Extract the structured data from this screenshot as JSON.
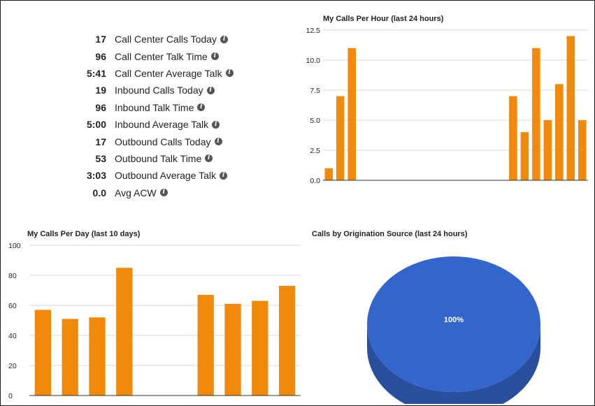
{
  "stats": [
    {
      "value": "17",
      "label": "Call Center Calls Today"
    },
    {
      "value": "96",
      "label": "Call Center Talk Time"
    },
    {
      "value": "5:41",
      "label": "Call Center Average Talk"
    },
    {
      "value": "19",
      "label": "Inbound Calls Today"
    },
    {
      "value": "96",
      "label": "Inbound Talk Time"
    },
    {
      "value": "5:00",
      "label": "Inbound Average Talk"
    },
    {
      "value": "17",
      "label": "Outbound Calls Today"
    },
    {
      "value": "53",
      "label": "Outbound Talk Time"
    },
    {
      "value": "3:03",
      "label": "Outbound Average Talk"
    },
    {
      "value": "0.0",
      "label": "Avg ACW"
    }
  ],
  "info_icon": "info-circle-icon",
  "colors": {
    "bar": "#f0890c",
    "pie_top": "#3366cc",
    "pie_side": "#2a4f9e"
  },
  "chart_data": [
    {
      "type": "bar",
      "title": "My Calls Per Hour (last 24 hours)",
      "ylim": [
        0,
        12.5
      ],
      "yticks": [
        "0.0",
        "2.5",
        "5.0",
        "7.5",
        "10.0",
        "12.5"
      ],
      "ytick_values": [
        0,
        2.5,
        5,
        7.5,
        10,
        12.5
      ],
      "values": [
        1,
        7,
        11,
        0,
        0,
        0,
        0,
        0,
        0,
        0,
        0,
        0,
        0,
        0,
        0,
        0,
        7,
        4,
        11,
        5,
        8,
        12,
        5
      ],
      "grid": true
    },
    {
      "type": "bar",
      "title": "My Calls Per Day (last 10 days)",
      "ylim": [
        0,
        100
      ],
      "yticks": [
        "0",
        "20",
        "40",
        "60",
        "80",
        "100"
      ],
      "ytick_values": [
        0,
        20,
        40,
        60,
        80,
        100
      ],
      "values": [
        57,
        51,
        52,
        85,
        0,
        0,
        67,
        61,
        63,
        73
      ],
      "grid": true
    },
    {
      "type": "pie",
      "title": "Calls by Origination Source (last 24 hours)",
      "slices": [
        {
          "value": 100,
          "label": "100%"
        }
      ],
      "style": "3d"
    }
  ]
}
